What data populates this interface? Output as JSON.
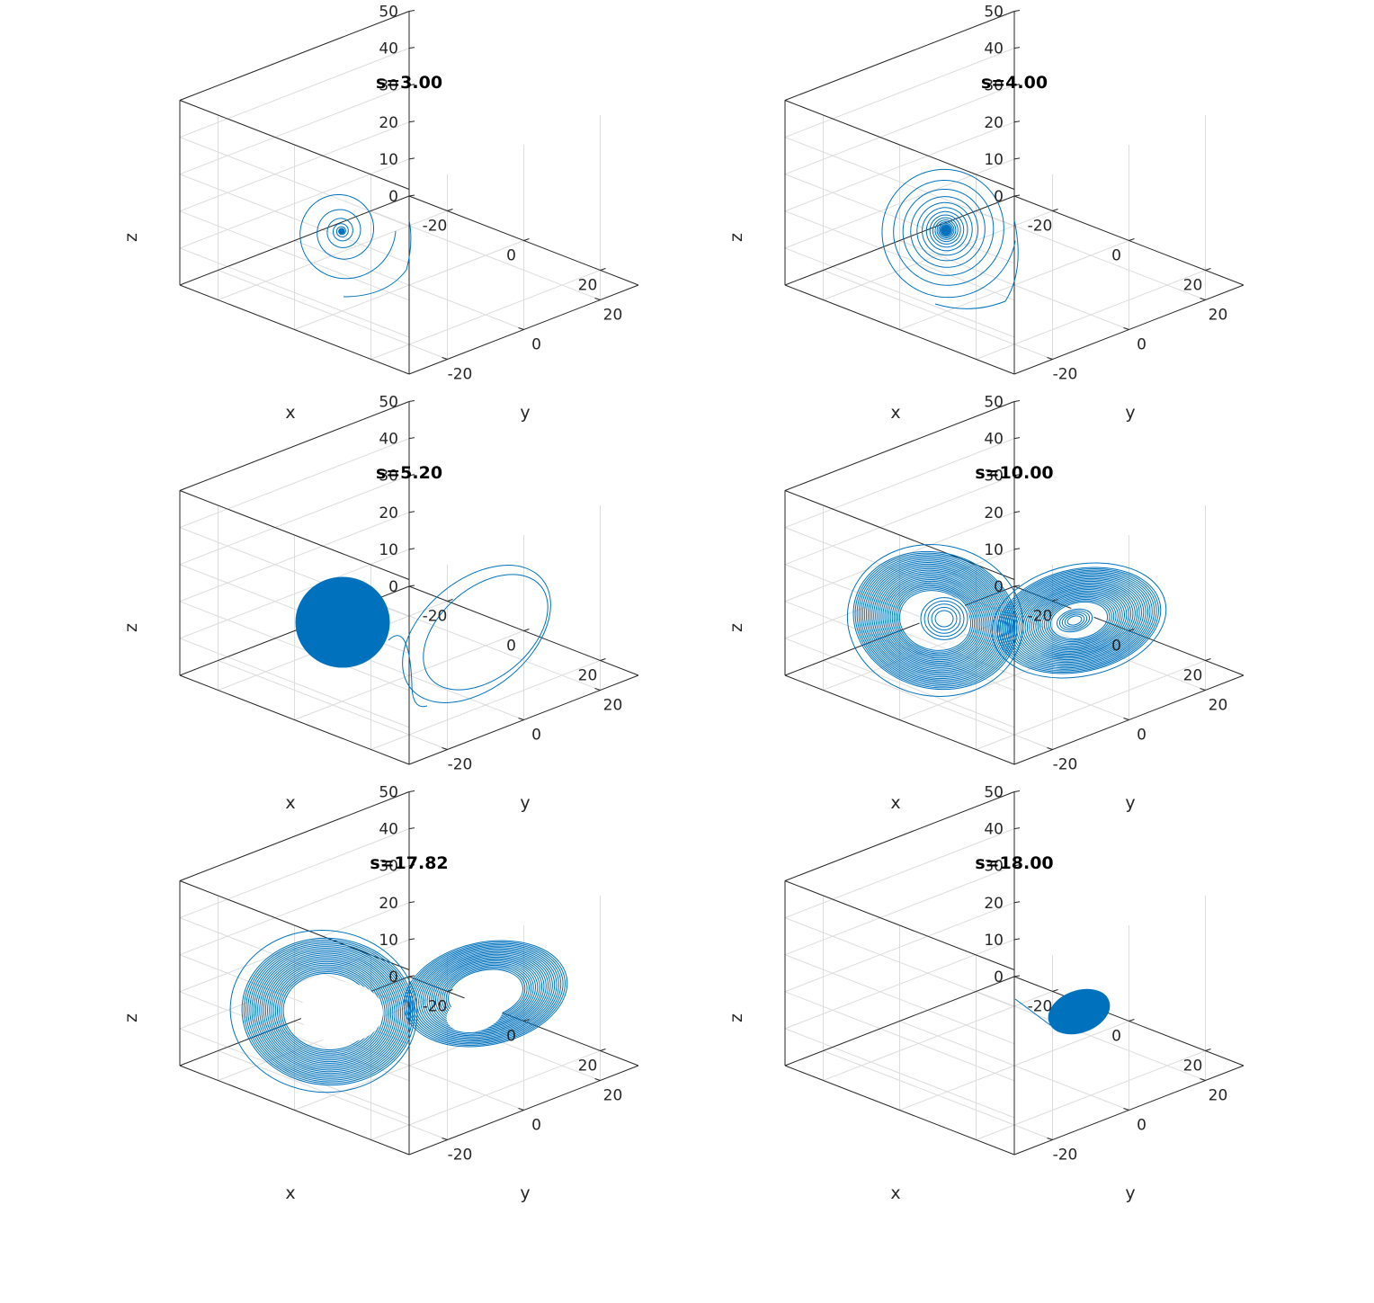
{
  "figure": {
    "system": "Lorenz trajectory, x-y-z view"
  },
  "chart_data": [
    {
      "type": "line",
      "title": "s=3.00",
      "xlabel": "x",
      "ylabel": "y",
      "zlabel": "z",
      "xlim": [
        -30,
        30
      ],
      "ylim": [
        -30,
        30
      ],
      "zlim": [
        0,
        50
      ],
      "xticks": [
        "-20",
        "0",
        "20"
      ],
      "yticks": [
        "-20",
        "0",
        "20"
      ],
      "zticks": [
        "0",
        "10",
        "20",
        "30",
        "40",
        "50"
      ],
      "grid": true,
      "behavior": "spiral converging to fixed point",
      "fixed_point_z": 27
    },
    {
      "type": "line",
      "title": "s=4.00",
      "xlabel": "x",
      "ylabel": "y",
      "zlabel": "z",
      "xlim": [
        -30,
        30
      ],
      "ylim": [
        -30,
        30
      ],
      "zlim": [
        0,
        50
      ],
      "xticks": [
        "-20",
        "0",
        "20"
      ],
      "yticks": [
        "-20",
        "0",
        "20"
      ],
      "zticks": [
        "0",
        "10",
        "20",
        "30",
        "40",
        "50"
      ],
      "grid": true,
      "behavior": "dense spiral converging to fixed point",
      "fixed_point_z": 27
    },
    {
      "type": "line",
      "title": "s=5.20",
      "xlabel": "x",
      "ylabel": "y",
      "zlabel": "z",
      "xlim": [
        -30,
        30
      ],
      "ylim": [
        -30,
        30
      ],
      "zlim": [
        0,
        50
      ],
      "xticks": [
        "-20",
        "0",
        "20"
      ],
      "yticks": [
        "-20",
        "0",
        "20"
      ],
      "zticks": [
        "0",
        "10",
        "20",
        "30",
        "40",
        "50"
      ],
      "grid": true,
      "behavior": "transient loops then dense disc around one fixed point"
    },
    {
      "type": "line",
      "title": "s=10.00",
      "xlabel": "x",
      "ylabel": "y",
      "zlabel": "z",
      "xlim": [
        -30,
        30
      ],
      "ylim": [
        -30,
        30
      ],
      "zlim": [
        0,
        50
      ],
      "xticks": [
        "-20",
        "0",
        "20"
      ],
      "yticks": [
        "-20",
        "0",
        "20"
      ],
      "zticks": [
        "0",
        "10",
        "20",
        "30",
        "40",
        "50"
      ],
      "grid": true,
      "behavior": "chaotic butterfly attractor"
    },
    {
      "type": "line",
      "title": "s=17.82",
      "xlabel": "x",
      "ylabel": "y",
      "zlabel": "z",
      "xlim": [
        -30,
        30
      ],
      "ylim": [
        -30,
        30
      ],
      "zlim": [
        0,
        50
      ],
      "xticks": [
        "-20",
        "0",
        "20"
      ],
      "yticks": [
        "-20",
        "0",
        "20"
      ],
      "zticks": [
        "0",
        "10",
        "20",
        "30",
        "40",
        "50"
      ],
      "grid": true,
      "behavior": "chaotic butterfly attractor"
    },
    {
      "type": "line",
      "title": "s=18.00",
      "xlabel": "x",
      "ylabel": "y",
      "zlabel": "z",
      "xlim": [
        -30,
        30
      ],
      "ylim": [
        -30,
        30
      ],
      "zlim": [
        0,
        50
      ],
      "xticks": [
        "-20",
        "0",
        "20"
      ],
      "yticks": [
        "-20",
        "0",
        "20"
      ],
      "zticks": [
        "0",
        "10",
        "20",
        "30",
        "40",
        "50"
      ],
      "grid": true,
      "behavior": "short transient then small dense limit cycle"
    }
  ],
  "colors": {
    "trajectory": "#0072bd",
    "axes": "#262626",
    "grid": "#dcdcdc"
  }
}
